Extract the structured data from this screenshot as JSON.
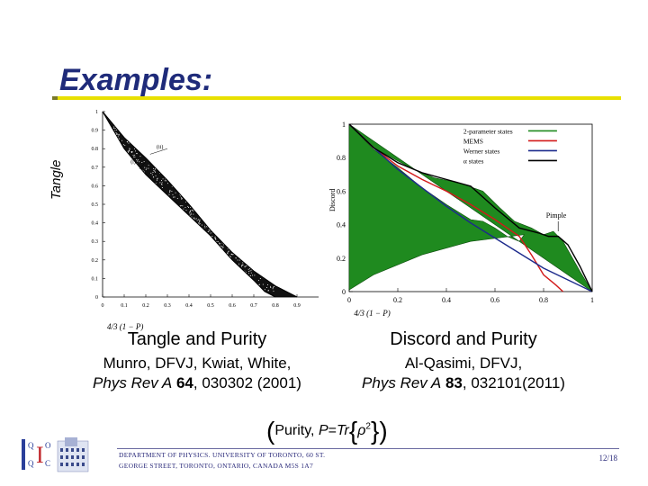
{
  "slide": {
    "title": "Examples:",
    "left_plot_ylabel": "Tangle",
    "left_caption": "Tangle and Purity",
    "left_cite_authors": "Munro, DFVJ, Kwiat, White,",
    "left_cite_journal": "Phys Rev A",
    "left_cite_volume": "64",
    "left_cite_pages": ", 030302 (2001)",
    "right_caption": "Discord and Purity",
    "right_cite_authors": "Al-Qasimi, DFVJ,",
    "right_cite_journal": "Phys Rev A",
    "right_cite_volume": "83",
    "right_cite_pages": ", 032101(2011)",
    "purity_text": "Purity,",
    "purity_formula_lhs": "P",
    "purity_formula_eq": "=",
    "purity_formula_tr": "Tr",
    "purity_formula_rho": "ρ",
    "purity_formula_exp": "2",
    "footer_line1": "DEPARTMENT OF PHYSICS. UNIVERSITY OF TORONTO, 60 ST.",
    "footer_line2": "GEORGE STREET, TORONTO, ONTARIO, CANADA M5S 1A7",
    "page_number": "12/18"
  },
  "chart_data": [
    {
      "type": "scatter",
      "title": "",
      "xlabel": "4/3 (1 − P)",
      "ylabel": "Tangle",
      "xlim": [
        0,
        1
      ],
      "ylim": [
        0,
        1
      ],
      "x_ticks": [
        "0",
        "0.1",
        "0.2",
        "0.3",
        "0.4",
        "0.5",
        "0.6",
        "0.7",
        "0.8",
        "0.9"
      ],
      "y_ticks": [
        "0",
        "0.1",
        "0.2",
        "0.3",
        "0.4",
        "0.5",
        "0.6",
        "0.7",
        "0.8",
        "0.9",
        "1"
      ],
      "annotations": [
        "(i)",
        "(ii)"
      ],
      "upper_boundary": [
        [
          0,
          1
        ],
        [
          0.05,
          0.9
        ],
        [
          0.1,
          0.8
        ],
        [
          0.2,
          0.66
        ],
        [
          0.3,
          0.55
        ],
        [
          0.4,
          0.44
        ],
        [
          0.5,
          0.33
        ],
        [
          0.6,
          0.2
        ],
        [
          0.7,
          0.09
        ],
        [
          0.75,
          0.03
        ],
        [
          0.8,
          0
        ]
      ],
      "lower_boundary": [
        [
          0,
          1
        ],
        [
          0.1,
          0.86
        ],
        [
          0.2,
          0.75
        ],
        [
          0.3,
          0.63
        ],
        [
          0.4,
          0.5
        ],
        [
          0.5,
          0.36
        ],
        [
          0.6,
          0.24
        ],
        [
          0.7,
          0.14
        ],
        [
          0.8,
          0.06
        ],
        [
          0.9,
          0
        ]
      ],
      "grid": false
    },
    {
      "type": "line",
      "title": "",
      "xlabel": "4/3 (1 − P)",
      "ylabel": "Discord",
      "xlim": [
        0,
        1
      ],
      "ylim": [
        0,
        1
      ],
      "x_ticks": [
        "0",
        "0.2",
        "0.4",
        "0.6",
        "0.8",
        "1"
      ],
      "y_ticks": [
        "0",
        "0.2",
        "0.4",
        "0.6",
        "0.8",
        "1"
      ],
      "legend_position": "top-right",
      "annotations": [
        "Pimple"
      ],
      "series": [
        {
          "name": "2-parameter states",
          "color": "#1f8a1f",
          "upper": [
            [
              0,
              1
            ],
            [
              0.1,
              0.86
            ],
            [
              0.2,
              0.78
            ],
            [
              0.28,
              0.72
            ],
            [
              0.35,
              0.68
            ],
            [
              0.45,
              0.65
            ],
            [
              0.55,
              0.6
            ],
            [
              0.62,
              0.5
            ],
            [
              0.68,
              0.42
            ],
            [
              0.75,
              0.38
            ],
            [
              0.8,
              0.34
            ],
            [
              0.84,
              0.36
            ],
            [
              0.88,
              0.3
            ],
            [
              0.95,
              0.12
            ],
            [
              1,
              0
            ]
          ],
          "lower": [
            [
              0,
              1
            ],
            [
              0.1,
              0.85
            ],
            [
              0.2,
              0.74
            ],
            [
              0.3,
              0.62
            ],
            [
              0.4,
              0.52
            ],
            [
              0.5,
              0.43
            ],
            [
              0.55,
              0.42
            ],
            [
              0.6,
              0.38
            ],
            [
              0.65,
              0.33
            ],
            [
              0.7,
              0.3
            ],
            [
              0.72,
              0.34
            ],
            [
              0.5,
              0.3
            ],
            [
              0.3,
              0.22
            ],
            [
              0.1,
              0.1
            ],
            [
              0,
              0.01
            ]
          ]
        },
        {
          "name": "MEMS",
          "color": "#d21a1a",
          "points": [
            [
              0,
              1
            ],
            [
              0.1,
              0.86
            ],
            [
              0.2,
              0.75
            ],
            [
              0.3,
              0.67
            ],
            [
              0.4,
              0.6
            ],
            [
              0.5,
              0.52
            ],
            [
              0.6,
              0.43
            ],
            [
              0.7,
              0.33
            ],
            [
              0.75,
              0.22
            ],
            [
              0.8,
              0.1
            ],
            [
              0.85,
              0.04
            ],
            [
              0.88,
              0
            ]
          ]
        },
        {
          "name": "Werner states",
          "color": "#1c2a8c",
          "points": [
            [
              0,
              1
            ],
            [
              0.1,
              0.86
            ],
            [
              0.2,
              0.73
            ],
            [
              0.3,
              0.62
            ],
            [
              0.4,
              0.51
            ],
            [
              0.5,
              0.41
            ],
            [
              0.6,
              0.32
            ],
            [
              0.7,
              0.23
            ],
            [
              0.8,
              0.14
            ],
            [
              0.9,
              0.07
            ],
            [
              1,
              0
            ]
          ]
        },
        {
          "name": "α states",
          "color": "#000000",
          "points": [
            [
              0,
              1
            ],
            [
              0.1,
              0.86
            ],
            [
              0.2,
              0.77
            ],
            [
              0.3,
              0.71
            ],
            [
              0.4,
              0.67
            ],
            [
              0.5,
              0.63
            ],
            [
              0.6,
              0.5
            ],
            [
              0.7,
              0.38
            ],
            [
              0.78,
              0.35
            ],
            [
              0.82,
              0.33
            ],
            [
              0.86,
              0.33
            ],
            [
              0.9,
              0.28
            ],
            [
              0.95,
              0.15
            ],
            [
              1,
              0
            ]
          ]
        }
      ],
      "grid": false
    }
  ]
}
